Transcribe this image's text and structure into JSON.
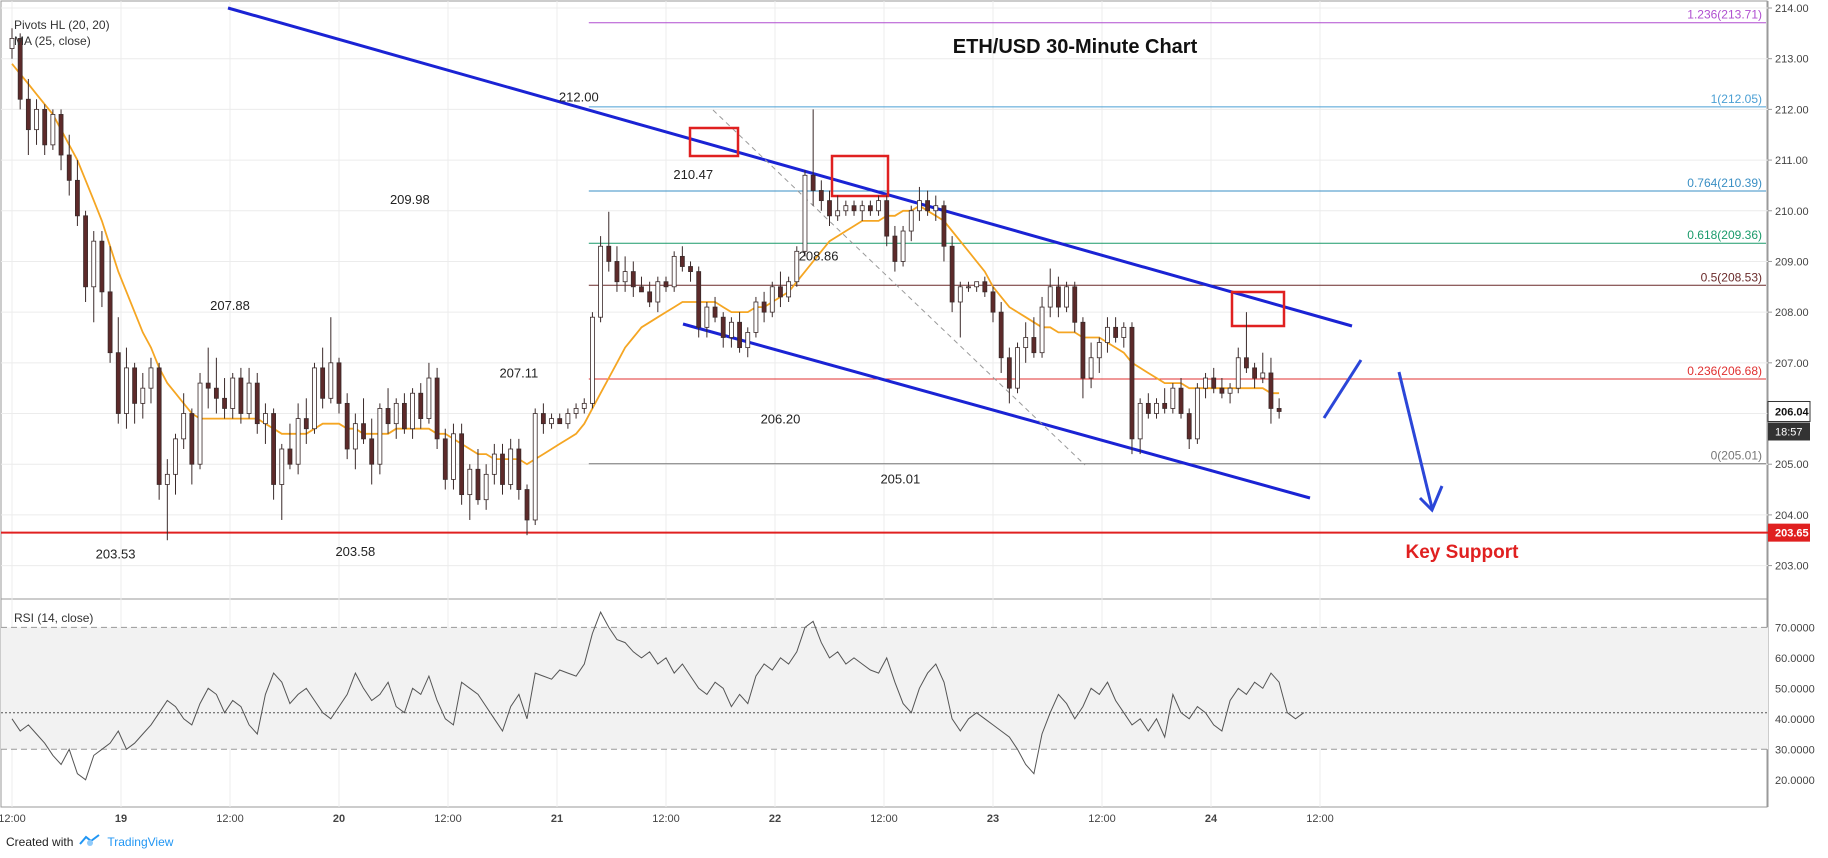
{
  "indicators": {
    "pivots": "Pivots HL (20, 20)",
    "ma": "MA (25, close)",
    "rsi": "RSI (14, close)"
  },
  "footer": {
    "created_with": "Created with",
    "brand": "TradingView"
  },
  "colors": {
    "up": "#ffffff",
    "down": "#5d2a2a",
    "ma": "#f5a623",
    "channel": "#1a23d4",
    "support": "#e02020",
    "fib": "#e57373",
    "rsi": "#555555"
  },
  "chart_data": {
    "type": "candlestick",
    "title": "ETH/USD 30-Minute Chart",
    "ylim": [
      202.4,
      214.0
    ],
    "y_ticks": [
      "203.00",
      "204.00",
      "205.00",
      "206.00",
      "207.00",
      "208.00",
      "209.00",
      "210.00",
      "211.00",
      "212.00",
      "213.00",
      "214.00"
    ],
    "x_ticks": [
      "12:00",
      "19",
      "12:00",
      "20",
      "12:00",
      "21",
      "12:00",
      "22",
      "12:00",
      "23",
      "12:00",
      "24",
      "12:00"
    ],
    "x_tick_slots": [
      0,
      20,
      40,
      60,
      80,
      100,
      120,
      140,
      160,
      180,
      200,
      220,
      240
    ],
    "slots_total": 258,
    "last_price": "206.04",
    "countdown": "18:57",
    "support_label": "203.65",
    "support_value": 203.65,
    "support_caption": "Key Support",
    "pivot_labels": [
      {
        "text": "203.53",
        "slot": 19,
        "value": 203.53,
        "pos": "below"
      },
      {
        "text": "207.88",
        "slot": 40,
        "value": 207.88,
        "pos": "above"
      },
      {
        "text": "203.58",
        "slot": 63,
        "value": 203.58,
        "pos": "below"
      },
      {
        "text": "209.98",
        "slot": 73,
        "value": 209.98,
        "pos": "above"
      },
      {
        "text": "207.11",
        "slot": 93,
        "value": 207.11,
        "pos": "below"
      },
      {
        "text": "212.00",
        "slot": 104,
        "value": 212.0,
        "pos": "above"
      },
      {
        "text": "210.47",
        "slot": 125,
        "value": 210.47,
        "pos": "above"
      },
      {
        "text": "206.20",
        "slot": 141,
        "value": 206.2,
        "pos": "below"
      },
      {
        "text": "208.86",
        "slot": 148,
        "value": 208.86,
        "pos": "above"
      },
      {
        "text": "205.01",
        "slot": 163,
        "value": 205.01,
        "pos": "below"
      }
    ],
    "fib_levels": [
      {
        "label": "1.236(213.71)",
        "value": 213.71,
        "color": "#b04fd0"
      },
      {
        "label": "1(212.05)",
        "value": 212.05,
        "color": "#4a9fd4"
      },
      {
        "label": "0.764(210.39)",
        "value": 210.39,
        "color": "#3a8fc4"
      },
      {
        "label": "0.618(209.36)",
        "value": 209.36,
        "color": "#1a9a6a"
      },
      {
        "label": "0.5(208.53)",
        "value": 208.53,
        "color": "#6a2a2a"
      },
      {
        "label": "0.236(206.68)",
        "value": 206.68,
        "color": "#e03030"
      },
      {
        "label": "0(205.01)",
        "value": 205.01,
        "color": "#777777"
      }
    ],
    "candles": [
      [
        213.2,
        213.6,
        213.0,
        213.4
      ],
      [
        213.4,
        213.5,
        212.0,
        212.2
      ],
      [
        212.2,
        212.6,
        211.1,
        211.6
      ],
      [
        211.6,
        212.2,
        211.3,
        212.0
      ],
      [
        212.0,
        212.1,
        211.1,
        211.3
      ],
      [
        211.3,
        212.0,
        211.2,
        211.9
      ],
      [
        211.9,
        212.0,
        210.8,
        211.1
      ],
      [
        211.1,
        211.5,
        210.3,
        210.6
      ],
      [
        210.6,
        211.0,
        209.7,
        209.9
      ],
      [
        209.9,
        210.0,
        208.2,
        208.5
      ],
      [
        208.5,
        209.6,
        207.8,
        209.4
      ],
      [
        209.4,
        209.6,
        208.1,
        208.4
      ],
      [
        208.4,
        209.3,
        207.0,
        207.2
      ],
      [
        207.2,
        207.9,
        205.8,
        206.0
      ],
      [
        206.0,
        207.3,
        205.7,
        206.9
      ],
      [
        206.9,
        207.0,
        205.8,
        206.2
      ],
      [
        206.2,
        206.8,
        205.9,
        206.5
      ],
      [
        206.5,
        207.1,
        206.2,
        206.9
      ],
      [
        206.9,
        207.0,
        204.3,
        204.6
      ],
      [
        204.6,
        205.1,
        203.5,
        204.8
      ],
      [
        204.8,
        205.6,
        204.4,
        205.5
      ],
      [
        205.5,
        206.4,
        205.3,
        206.0
      ],
      [
        206.0,
        206.1,
        204.6,
        205.0
      ],
      [
        205.0,
        206.8,
        204.9,
        206.6
      ],
      [
        206.6,
        207.3,
        206.1,
        206.5
      ],
      [
        206.5,
        207.1,
        206.0,
        206.3
      ],
      [
        206.3,
        206.7,
        205.9,
        206.1
      ],
      [
        206.1,
        206.8,
        205.9,
        206.7
      ],
      [
        206.7,
        206.9,
        205.8,
        206.0
      ],
      [
        206.0,
        206.9,
        205.9,
        206.6
      ],
      [
        206.6,
        206.8,
        205.6,
        205.8
      ],
      [
        205.8,
        206.2,
        205.4,
        206.0
      ],
      [
        206.0,
        206.1,
        204.3,
        204.6
      ],
      [
        204.6,
        205.4,
        203.9,
        205.3
      ],
      [
        205.3,
        205.8,
        204.9,
        205.0
      ],
      [
        205.0,
        206.2,
        204.8,
        205.9
      ],
      [
        205.9,
        206.3,
        205.4,
        205.7
      ],
      [
        205.7,
        207.0,
        205.6,
        206.9
      ],
      [
        206.9,
        207.3,
        206.1,
        206.3
      ],
      [
        206.3,
        207.9,
        206.2,
        207.0
      ],
      [
        207.0,
        207.1,
        206.0,
        206.2
      ],
      [
        206.2,
        206.4,
        205.1,
        205.3
      ],
      [
        205.3,
        206.0,
        204.9,
        205.8
      ],
      [
        205.8,
        206.3,
        205.4,
        205.5
      ],
      [
        205.5,
        205.9,
        204.6,
        205.0
      ],
      [
        205.0,
        206.2,
        204.8,
        206.1
      ],
      [
        206.1,
        206.5,
        205.6,
        205.8
      ],
      [
        205.8,
        206.3,
        205.5,
        206.2
      ],
      [
        206.2,
        206.4,
        205.6,
        205.7
      ],
      [
        205.7,
        206.5,
        205.5,
        206.4
      ],
      [
        206.4,
        206.6,
        205.7,
        205.9
      ],
      [
        205.9,
        207.0,
        205.8,
        206.7
      ],
      [
        206.7,
        206.9,
        205.3,
        205.5
      ],
      [
        205.5,
        205.7,
        204.5,
        204.7
      ],
      [
        204.7,
        205.8,
        204.5,
        205.6
      ],
      [
        205.6,
        205.8,
        204.2,
        204.4
      ],
      [
        204.4,
        205.0,
        203.9,
        204.9
      ],
      [
        204.9,
        205.3,
        204.2,
        204.3
      ],
      [
        204.3,
        205.0,
        204.1,
        204.8
      ],
      [
        204.8,
        205.4,
        204.6,
        205.2
      ],
      [
        205.2,
        205.4,
        204.4,
        204.6
      ],
      [
        204.6,
        205.5,
        204.5,
        205.3
      ],
      [
        205.3,
        205.5,
        204.3,
        204.5
      ],
      [
        204.5,
        204.6,
        203.6,
        203.9
      ],
      [
        203.9,
        206.1,
        203.8,
        206.0
      ],
      [
        206.0,
        206.2,
        205.6,
        205.8
      ],
      [
        205.8,
        206.0,
        205.7,
        205.9
      ],
      [
        205.9,
        206.0,
        205.8,
        205.8
      ],
      [
        205.8,
        206.1,
        205.7,
        206.0
      ],
      [
        206.0,
        206.2,
        205.9,
        206.1
      ],
      [
        206.1,
        206.3,
        206.0,
        206.2
      ],
      [
        206.2,
        208.0,
        206.1,
        207.9
      ],
      [
        207.9,
        209.5,
        207.8,
        209.3
      ],
      [
        209.3,
        209.98,
        208.8,
        209.0
      ],
      [
        209.0,
        209.3,
        208.4,
        208.6
      ],
      [
        208.6,
        209.1,
        208.4,
        208.8
      ],
      [
        208.8,
        209.0,
        208.3,
        208.5
      ],
      [
        208.5,
        208.7,
        208.4,
        208.4
      ],
      [
        208.4,
        208.6,
        208.1,
        208.2
      ],
      [
        208.2,
        208.7,
        208.0,
        208.6
      ],
      [
        208.6,
        208.7,
        208.4,
        208.5
      ],
      [
        208.5,
        209.2,
        208.4,
        209.1
      ],
      [
        209.1,
        209.3,
        208.8,
        208.9
      ],
      [
        208.9,
        209.0,
        208.6,
        208.8
      ],
      [
        208.8,
        208.9,
        207.5,
        207.7
      ],
      [
        207.7,
        208.2,
        207.5,
        208.1
      ],
      [
        208.1,
        208.3,
        207.8,
        207.9
      ],
      [
        207.9,
        208.0,
        207.3,
        207.5
      ],
      [
        207.5,
        207.9,
        207.3,
        207.8
      ],
      [
        207.8,
        208.0,
        207.2,
        207.3
      ],
      [
        207.3,
        207.7,
        207.11,
        207.6
      ],
      [
        207.6,
        208.3,
        207.5,
        208.2
      ],
      [
        208.2,
        208.4,
        207.8,
        208.0
      ],
      [
        208.0,
        208.6,
        207.9,
        208.5
      ],
      [
        208.5,
        208.8,
        208.1,
        208.3
      ],
      [
        208.3,
        208.7,
        208.2,
        208.6
      ],
      [
        208.6,
        209.3,
        208.5,
        209.2
      ],
      [
        209.2,
        210.8,
        209.1,
        210.7
      ],
      [
        210.7,
        212.0,
        210.1,
        210.4
      ],
      [
        210.4,
        210.6,
        210.0,
        210.2
      ],
      [
        210.2,
        210.4,
        209.7,
        209.9
      ],
      [
        209.9,
        210.3,
        209.8,
        210.0
      ],
      [
        210.0,
        210.2,
        209.9,
        210.1
      ],
      [
        210.1,
        210.2,
        209.9,
        210.0
      ],
      [
        210.0,
        210.2,
        209.8,
        210.1
      ],
      [
        210.1,
        210.2,
        209.9,
        210.0
      ],
      [
        210.0,
        210.3,
        209.9,
        210.2
      ],
      [
        210.2,
        210.3,
        209.3,
        209.5
      ],
      [
        209.5,
        209.7,
        208.8,
        209.0
      ],
      [
        209.0,
        209.7,
        208.9,
        209.6
      ],
      [
        209.6,
        210.1,
        209.4,
        210.0
      ],
      [
        210.0,
        210.47,
        209.8,
        210.2
      ],
      [
        210.2,
        210.4,
        209.9,
        210.0
      ],
      [
        210.0,
        210.3,
        209.8,
        210.1
      ],
      [
        210.1,
        210.2,
        209.0,
        209.3
      ],
      [
        209.3,
        209.5,
        208.0,
        208.2
      ],
      [
        208.2,
        208.6,
        207.5,
        208.5
      ],
      [
        208.5,
        208.6,
        208.4,
        208.5
      ],
      [
        208.5,
        208.6,
        208.4,
        208.6
      ],
      [
        208.6,
        208.7,
        208.3,
        208.4
      ],
      [
        208.4,
        208.5,
        207.8,
        208.0
      ],
      [
        208.0,
        208.2,
        206.8,
        207.1
      ],
      [
        207.1,
        207.3,
        206.2,
        206.5
      ],
      [
        206.5,
        207.4,
        206.4,
        207.3
      ],
      [
        207.3,
        207.8,
        207.0,
        207.5
      ],
      [
        207.5,
        207.9,
        207.1,
        207.2
      ],
      [
        207.2,
        208.3,
        207.1,
        208.1
      ],
      [
        208.1,
        208.86,
        207.9,
        208.5
      ],
      [
        208.5,
        208.7,
        207.9,
        208.1
      ],
      [
        208.1,
        208.6,
        208.0,
        208.5
      ],
      [
        208.5,
        208.6,
        207.6,
        207.8
      ],
      [
        207.8,
        207.9,
        206.3,
        206.7
      ],
      [
        206.7,
        207.4,
        206.5,
        207.1
      ],
      [
        207.1,
        207.5,
        206.8,
        207.4
      ],
      [
        207.4,
        207.9,
        207.2,
        207.7
      ],
      [
        207.7,
        207.9,
        207.4,
        207.5
      ],
      [
        207.5,
        207.8,
        207.3,
        207.7
      ],
      [
        207.7,
        207.8,
        205.2,
        205.5
      ],
      [
        205.5,
        206.3,
        205.2,
        206.2
      ],
      [
        206.2,
        206.4,
        205.9,
        206.0
      ],
      [
        206.0,
        206.3,
        205.9,
        206.2
      ],
      [
        206.2,
        206.5,
        206.0,
        206.1
      ],
      [
        206.1,
        206.6,
        206.0,
        206.5
      ],
      [
        206.5,
        206.7,
        205.9,
        206.0
      ],
      [
        206.0,
        206.1,
        205.3,
        205.5
      ],
      [
        205.5,
        206.6,
        205.4,
        206.5
      ],
      [
        206.5,
        206.8,
        206.3,
        206.7
      ],
      [
        206.7,
        206.9,
        206.4,
        206.5
      ],
      [
        206.5,
        206.7,
        206.3,
        206.4
      ],
      [
        206.4,
        206.6,
        206.2,
        206.5
      ],
      [
        206.5,
        207.3,
        206.4,
        207.1
      ],
      [
        207.1,
        208.0,
        206.8,
        206.9
      ],
      [
        206.9,
        207.0,
        206.5,
        206.7
      ],
      [
        206.7,
        207.2,
        206.6,
        206.8
      ],
      [
        206.8,
        207.1,
        205.8,
        206.1
      ],
      [
        206.1,
        206.3,
        205.9,
        206.04
      ]
    ],
    "candle_start_slot": 0,
    "candle_slot_step": 1.5,
    "ma_values": [
      212.9,
      212.7,
      212.5,
      212.3,
      212.1,
      211.9,
      211.6,
      211.3,
      211.0,
      210.6,
      210.2,
      209.8,
      209.3,
      208.8,
      208.4,
      208.0,
      207.6,
      207.3,
      206.9,
      206.6,
      206.4,
      206.2,
      206.0,
      205.9,
      205.9,
      205.9,
      205.9,
      205.9,
      205.9,
      205.9,
      205.9,
      205.8,
      205.7,
      205.6,
      205.6,
      205.6,
      205.6,
      205.7,
      205.8,
      205.8,
      205.8,
      205.7,
      205.7,
      205.6,
      205.6,
      205.6,
      205.6,
      205.7,
      205.7,
      205.7,
      205.7,
      205.7,
      205.6,
      205.6,
      205.5,
      205.4,
      205.3,
      205.2,
      205.2,
      205.1,
      205.1,
      205.1,
      205.1,
      205.0,
      205.1,
      205.2,
      205.3,
      205.4,
      205.5,
      205.6,
      205.8,
      206.1,
      206.4,
      206.7,
      207.0,
      207.3,
      207.5,
      207.7,
      207.8,
      207.9,
      208.0,
      208.1,
      208.2,
      208.2,
      208.2,
      208.2,
      208.2,
      208.1,
      208.0,
      208.0,
      208.0,
      208.1,
      208.1,
      208.2,
      208.3,
      208.4,
      208.6,
      208.8,
      209.0,
      209.2,
      209.4,
      209.5,
      209.6,
      209.7,
      209.8,
      209.8,
      209.8,
      209.9,
      209.9,
      210.0,
      210.0,
      210.1,
      210.0,
      209.9,
      209.8,
      209.6,
      209.4,
      209.2,
      209.0,
      208.8,
      208.5,
      208.3,
      208.1,
      208.0,
      207.9,
      207.8,
      207.7,
      207.7,
      207.6,
      207.6,
      207.6,
      207.5,
      207.5,
      207.5,
      207.4,
      207.3,
      207.2,
      207.0,
      206.9,
      206.8,
      206.7,
      206.6,
      206.6,
      206.6,
      206.5,
      206.5,
      206.5,
      206.5,
      206.5,
      206.5,
      206.5,
      206.5,
      206.5,
      206.5,
      206.4,
      206.4
    ],
    "rsi": {
      "ylim": [
        15,
        78
      ],
      "ticks": [
        "20.0000",
        "30.0000",
        "40.0000",
        "50.0000",
        "60.0000",
        "70.0000"
      ],
      "band": [
        30,
        70
      ],
      "mid": 42,
      "values": [
        40,
        36,
        38,
        35,
        32,
        28,
        25,
        30,
        22,
        20,
        28,
        30,
        32,
        36,
        30,
        32,
        35,
        38,
        42,
        46,
        44,
        40,
        38,
        45,
        50,
        48,
        42,
        46,
        44,
        38,
        35,
        48,
        55,
        52,
        45,
        48,
        50,
        46,
        42,
        40,
        44,
        48,
        55,
        50,
        46,
        48,
        52,
        44,
        42,
        50,
        48,
        54,
        46,
        40,
        38,
        52,
        50,
        48,
        44,
        40,
        36,
        44,
        48,
        40,
        55,
        54,
        53,
        56,
        55,
        54,
        58,
        68,
        75,
        70,
        66,
        65,
        62,
        60,
        62,
        58,
        60,
        55,
        58,
        54,
        50,
        48,
        52,
        50,
        44,
        48,
        45,
        54,
        58,
        56,
        60,
        58,
        62,
        70,
        72,
        65,
        60,
        62,
        58,
        60,
        58,
        56,
        55,
        60,
        52,
        45,
        42,
        50,
        55,
        58,
        52,
        40,
        36,
        40,
        42,
        40,
        38,
        36,
        34,
        30,
        25,
        22,
        35,
        42,
        48,
        45,
        40,
        44,
        50,
        48,
        52,
        46,
        42,
        38,
        40,
        36,
        40,
        34,
        48,
        42,
        40,
        44,
        42,
        38,
        36,
        46,
        50,
        48,
        52,
        50,
        55,
        52,
        42,
        40,
        42
      ]
    }
  }
}
